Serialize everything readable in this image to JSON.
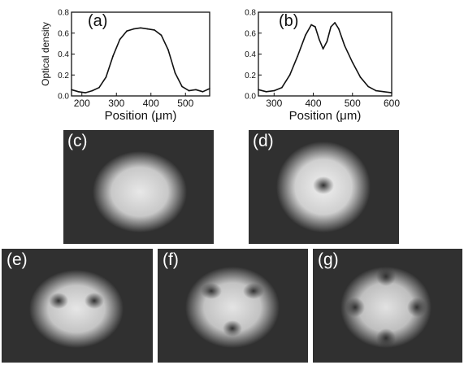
{
  "figure": {
    "panels": {
      "a": "(a)",
      "b": "(b)",
      "c": "(c)",
      "d": "(d)",
      "e": "(e)",
      "f": "(f)",
      "g": "(g)"
    }
  },
  "chart_data": [
    {
      "type": "line",
      "panel": "(a)",
      "xlabel": "Position (μm)",
      "ylabel": "Optical density",
      "xlim": [
        170,
        570
      ],
      "ylim": [
        0,
        0.8
      ],
      "xticks": [
        "200",
        "300",
        "400",
        "500"
      ],
      "yticks": [
        "0.0",
        "0.2",
        "0.4",
        "0.6",
        "0.8"
      ],
      "x": [
        170,
        190,
        210,
        230,
        250,
        270,
        290,
        310,
        330,
        350,
        370,
        390,
        410,
        430,
        450,
        470,
        490,
        510,
        530,
        550,
        570
      ],
      "y": [
        0.06,
        0.04,
        0.03,
        0.05,
        0.08,
        0.18,
        0.38,
        0.54,
        0.62,
        0.64,
        0.65,
        0.64,
        0.63,
        0.58,
        0.44,
        0.22,
        0.09,
        0.05,
        0.06,
        0.04,
        0.07
      ]
    },
    {
      "type": "line",
      "panel": "(b)",
      "xlabel": "Position (μm)",
      "ylabel": "",
      "xlim": [
        260,
        600
      ],
      "ylim": [
        0,
        0.8
      ],
      "xticks": [
        "300",
        "400",
        "500",
        "600"
      ],
      "yticks": [
        "0.0",
        "0.2",
        "0.4",
        "0.6",
        "0.8"
      ],
      "x": [
        260,
        280,
        300,
        320,
        340,
        360,
        380,
        395,
        405,
        415,
        425,
        435,
        445,
        455,
        465,
        480,
        500,
        520,
        540,
        560,
        580,
        600
      ],
      "y": [
        0.06,
        0.04,
        0.05,
        0.08,
        0.2,
        0.38,
        0.58,
        0.68,
        0.66,
        0.54,
        0.45,
        0.52,
        0.66,
        0.7,
        0.64,
        0.48,
        0.32,
        0.18,
        0.09,
        0.05,
        0.04,
        0.03
      ]
    }
  ]
}
